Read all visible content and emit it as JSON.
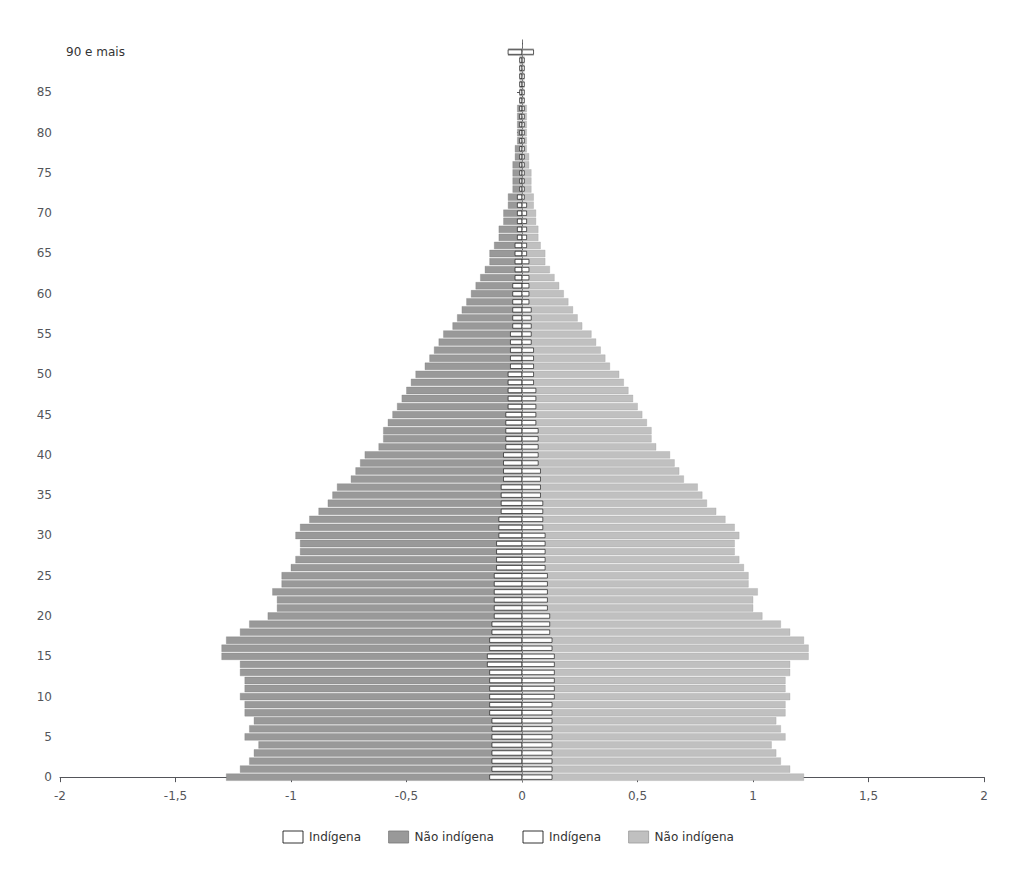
{
  "chart_data": {
    "type": "bar",
    "orientation": "horizontal",
    "y": [
      0,
      1,
      2,
      3,
      4,
      5,
      6,
      7,
      8,
      9,
      10,
      11,
      12,
      13,
      14,
      15,
      16,
      17,
      18,
      19,
      20,
      21,
      22,
      23,
      24,
      25,
      26,
      27,
      28,
      29,
      30,
      31,
      32,
      33,
      34,
      35,
      36,
      37,
      38,
      39,
      40,
      41,
      42,
      43,
      44,
      45,
      46,
      47,
      48,
      49,
      50,
      51,
      52,
      53,
      54,
      55,
      56,
      57,
      58,
      59,
      60,
      61,
      62,
      63,
      64,
      65,
      66,
      67,
      68,
      69,
      70,
      71,
      72,
      73,
      74,
      75,
      76,
      77,
      78,
      79,
      80,
      81,
      82,
      83,
      84,
      85,
      86,
      87,
      88,
      89,
      90
    ],
    "series": [
      {
        "name": "Indígena",
        "color": "#ffffff",
        "values": [
          -0.14,
          -0.13,
          -0.13,
          -0.13,
          -0.13,
          -0.13,
          -0.13,
          -0.13,
          -0.14,
          -0.14,
          -0.14,
          -0.14,
          -0.14,
          -0.14,
          -0.15,
          -0.15,
          -0.14,
          -0.14,
          -0.13,
          -0.13,
          -0.12,
          -0.12,
          -0.12,
          -0.12,
          -0.12,
          -0.12,
          -0.11,
          -0.11,
          -0.11,
          -0.11,
          -0.1,
          -0.1,
          -0.1,
          -0.09,
          -0.09,
          -0.09,
          -0.09,
          -0.08,
          -0.08,
          -0.08,
          -0.08,
          -0.07,
          -0.07,
          -0.07,
          -0.07,
          -0.07,
          -0.06,
          -0.06,
          -0.06,
          -0.06,
          -0.06,
          -0.05,
          -0.05,
          -0.05,
          -0.05,
          -0.05,
          -0.04,
          -0.04,
          -0.04,
          -0.04,
          -0.04,
          -0.04,
          -0.03,
          -0.03,
          -0.03,
          -0.03,
          -0.03,
          -0.02,
          -0.02,
          -0.02,
          -0.02,
          -0.02,
          -0.02,
          -0.01,
          -0.01,
          -0.01,
          -0.01,
          -0.01,
          -0.01,
          -0.01,
          -0.01,
          -0.01,
          -0.01,
          -0.01,
          -0.01,
          -0.01,
          -0.01,
          -0.01,
          -0.01,
          -0.01,
          -0.06
        ]
      },
      {
        "name": "Não indígena",
        "color": "#999999",
        "values": [
          -1.28,
          -1.22,
          -1.18,
          -1.16,
          -1.14,
          -1.2,
          -1.18,
          -1.16,
          -1.2,
          -1.2,
          -1.22,
          -1.2,
          -1.2,
          -1.22,
          -1.22,
          -1.3,
          -1.3,
          -1.28,
          -1.22,
          -1.18,
          -1.1,
          -1.06,
          -1.06,
          -1.08,
          -1.04,
          -1.04,
          -1.0,
          -0.98,
          -0.96,
          -0.96,
          -0.98,
          -0.96,
          -0.92,
          -0.88,
          -0.84,
          -0.82,
          -0.8,
          -0.74,
          -0.72,
          -0.7,
          -0.68,
          -0.62,
          -0.6,
          -0.6,
          -0.58,
          -0.56,
          -0.54,
          -0.52,
          -0.5,
          -0.48,
          -0.46,
          -0.42,
          -0.4,
          -0.38,
          -0.36,
          -0.34,
          -0.3,
          -0.28,
          -0.26,
          -0.24,
          -0.22,
          -0.2,
          -0.18,
          -0.16,
          -0.14,
          -0.14,
          -0.12,
          -0.1,
          -0.1,
          -0.08,
          -0.08,
          -0.06,
          -0.06,
          -0.04,
          -0.04,
          -0.04,
          -0.04,
          -0.03,
          -0.03,
          -0.02,
          -0.02,
          -0.02,
          -0.02,
          -0.02,
          -0.01,
          -0.01,
          -0.01,
          -0.01,
          -0.01,
          -0.01,
          -0.06
        ]
      },
      {
        "name": "Indígena",
        "color": "#ffffff",
        "values": [
          0.13,
          0.13,
          0.13,
          0.13,
          0.13,
          0.13,
          0.13,
          0.13,
          0.13,
          0.13,
          0.14,
          0.14,
          0.14,
          0.14,
          0.14,
          0.14,
          0.13,
          0.13,
          0.12,
          0.12,
          0.12,
          0.11,
          0.11,
          0.11,
          0.11,
          0.11,
          0.1,
          0.1,
          0.1,
          0.1,
          0.1,
          0.09,
          0.09,
          0.09,
          0.09,
          0.08,
          0.08,
          0.08,
          0.08,
          0.07,
          0.07,
          0.07,
          0.07,
          0.07,
          0.06,
          0.06,
          0.06,
          0.06,
          0.06,
          0.05,
          0.05,
          0.05,
          0.05,
          0.05,
          0.04,
          0.04,
          0.04,
          0.04,
          0.04,
          0.03,
          0.03,
          0.03,
          0.03,
          0.03,
          0.03,
          0.02,
          0.02,
          0.02,
          0.02,
          0.02,
          0.02,
          0.02,
          0.01,
          0.01,
          0.01,
          0.01,
          0.01,
          0.01,
          0.01,
          0.01,
          0.01,
          0.01,
          0.01,
          0.01,
          0.01,
          0.01,
          0.01,
          0.01,
          0.01,
          0.01,
          0.05
        ]
      },
      {
        "name": "Não indígena",
        "color": "#c0c0c0",
        "values": [
          1.22,
          1.16,
          1.12,
          1.1,
          1.08,
          1.14,
          1.12,
          1.1,
          1.14,
          1.14,
          1.16,
          1.14,
          1.14,
          1.16,
          1.16,
          1.24,
          1.24,
          1.22,
          1.16,
          1.12,
          1.04,
          1.0,
          1.0,
          1.02,
          0.98,
          0.98,
          0.96,
          0.94,
          0.92,
          0.92,
          0.94,
          0.92,
          0.88,
          0.84,
          0.8,
          0.78,
          0.76,
          0.7,
          0.68,
          0.66,
          0.64,
          0.58,
          0.56,
          0.56,
          0.54,
          0.52,
          0.5,
          0.48,
          0.46,
          0.44,
          0.42,
          0.38,
          0.36,
          0.34,
          0.32,
          0.3,
          0.26,
          0.24,
          0.22,
          0.2,
          0.18,
          0.16,
          0.14,
          0.12,
          0.1,
          0.1,
          0.08,
          0.07,
          0.07,
          0.06,
          0.06,
          0.05,
          0.05,
          0.04,
          0.04,
          0.04,
          0.03,
          0.03,
          0.02,
          0.02,
          0.02,
          0.02,
          0.02,
          0.02,
          0.01,
          0.01,
          0.01,
          0.01,
          0.01,
          0.01,
          0.05
        ]
      }
    ],
    "xlim": [
      -2,
      2
    ],
    "xticks": [
      -2,
      {
        "value": -1.5,
        "label": "-1,5"
      },
      -1,
      {
        "value": -0.5,
        "label": "-0,5"
      },
      0,
      {
        "value": 0.5,
        "label": "0,5"
      },
      1,
      {
        "value": 1.5,
        "label": "1,5"
      },
      2
    ],
    "ylim": [
      -0.6,
      91.5
    ],
    "yticks": [
      0,
      5,
      10,
      15,
      20,
      25,
      30,
      35,
      40,
      45,
      50,
      55,
      60,
      65,
      70,
      75,
      80,
      85
    ],
    "annotations": [
      {
        "text": "90 e mais",
        "y": 90
      }
    ],
    "grid": false,
    "legend": "bottom"
  }
}
